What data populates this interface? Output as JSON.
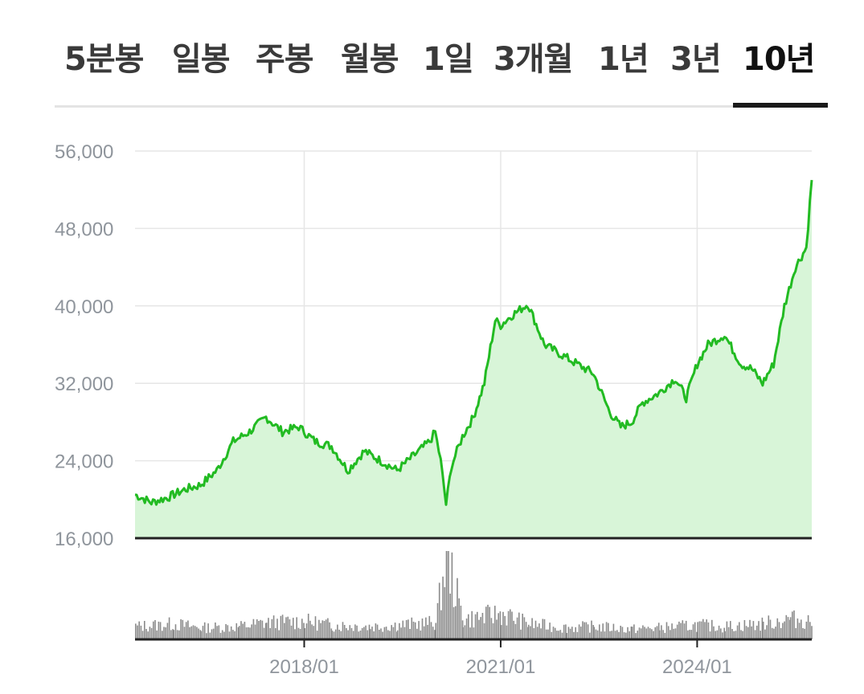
{
  "tabs": [
    {
      "label": "5분봉",
      "active": false
    },
    {
      "label": "일봉",
      "active": false
    },
    {
      "label": "주봉",
      "active": false
    },
    {
      "label": "월봉",
      "active": false
    },
    {
      "label": "1일",
      "active": false
    },
    {
      "label": "3개월",
      "active": false
    },
    {
      "label": "1년",
      "active": false
    },
    {
      "label": "3년",
      "active": false
    },
    {
      "label": "10년",
      "active": true
    }
  ],
  "colors": {
    "line": "#22bb22",
    "area": "#d8f5d8",
    "volume": "#8a8a8a",
    "grid": "#e6e6e6",
    "axis": "#222222"
  },
  "chart_data": {
    "type": "area",
    "title": "",
    "xlabel": "",
    "ylabel": "",
    "ylim": [
      16000,
      56000
    ],
    "yticks": [
      16000,
      24000,
      32000,
      40000,
      48000,
      56000
    ],
    "ytick_labels": [
      "16,000",
      "24,000",
      "32,000",
      "40,000",
      "48,000",
      "56,000"
    ],
    "xlim": [
      "2015-06",
      "2025-10"
    ],
    "xticks": [
      "2018-01",
      "2021-01",
      "2024-01"
    ],
    "xtick_labels": [
      "2018/01",
      "2021/01",
      "2024/01"
    ],
    "grid": true,
    "series": [
      {
        "x": [
          "2015-06",
          "2015-09",
          "2015-12",
          "2016-03",
          "2016-06",
          "2016-09",
          "2016-12",
          "2017-03",
          "2017-06",
          "2017-09",
          "2017-12",
          "2018-01",
          "2018-03",
          "2018-06",
          "2018-09",
          "2018-12",
          "2019-03",
          "2019-06",
          "2019-09",
          "2019-12",
          "2020-01",
          "2020-02",
          "2020-03",
          "2020-04",
          "2020-05",
          "2020-06",
          "2020-08",
          "2020-10",
          "2020-12",
          "2021-01",
          "2021-03",
          "2021-06",
          "2021-09",
          "2021-12",
          "2022-03",
          "2022-06",
          "2022-09",
          "2022-11",
          "2023-01",
          "2023-03",
          "2023-06",
          "2023-09",
          "2023-11",
          "2024-01",
          "2024-03",
          "2024-06",
          "2024-09",
          "2024-11",
          "2025-01",
          "2025-03",
          "2025-05",
          "2025-07",
          "2025-09",
          "2025-10"
        ],
        "values": [
          20500,
          19700,
          20200,
          21000,
          21500,
          23000,
          26000,
          27000,
          28500,
          27000,
          27500,
          27000,
          26000,
          25500,
          23000,
          25000,
          24000,
          23000,
          24500,
          26000,
          27000,
          24000,
          19500,
          23500,
          25000,
          26500,
          28500,
          32000,
          38500,
          38000,
          39000,
          40200,
          36000,
          35000,
          34000,
          33000,
          29000,
          27500,
          28000,
          30000,
          31000,
          32500,
          30500,
          34000,
          36000,
          37000,
          34000,
          33500,
          32000,
          34000,
          40000,
          44000,
          46000,
          53000
        ]
      }
    ],
    "volume": {
      "x": [
        "2015-06",
        "2016-01",
        "2016-06",
        "2017-01",
        "2017-06",
        "2018-01",
        "2018-06",
        "2019-01",
        "2019-06",
        "2020-01",
        "2020-03",
        "2020-06",
        "2021-01",
        "2021-06",
        "2022-01",
        "2022-06",
        "2023-01",
        "2023-06",
        "2024-01",
        "2024-06",
        "2025-01",
        "2025-06",
        "2025-10"
      ],
      "values": [
        1.0,
        1.2,
        0.9,
        1.0,
        1.3,
        1.4,
        1.1,
        1.0,
        1.1,
        1.3,
        6.5,
        1.5,
        2.0,
        1.2,
        0.9,
        1.0,
        0.8,
        0.9,
        1.1,
        1.0,
        1.2,
        1.6,
        1.4
      ]
    }
  }
}
